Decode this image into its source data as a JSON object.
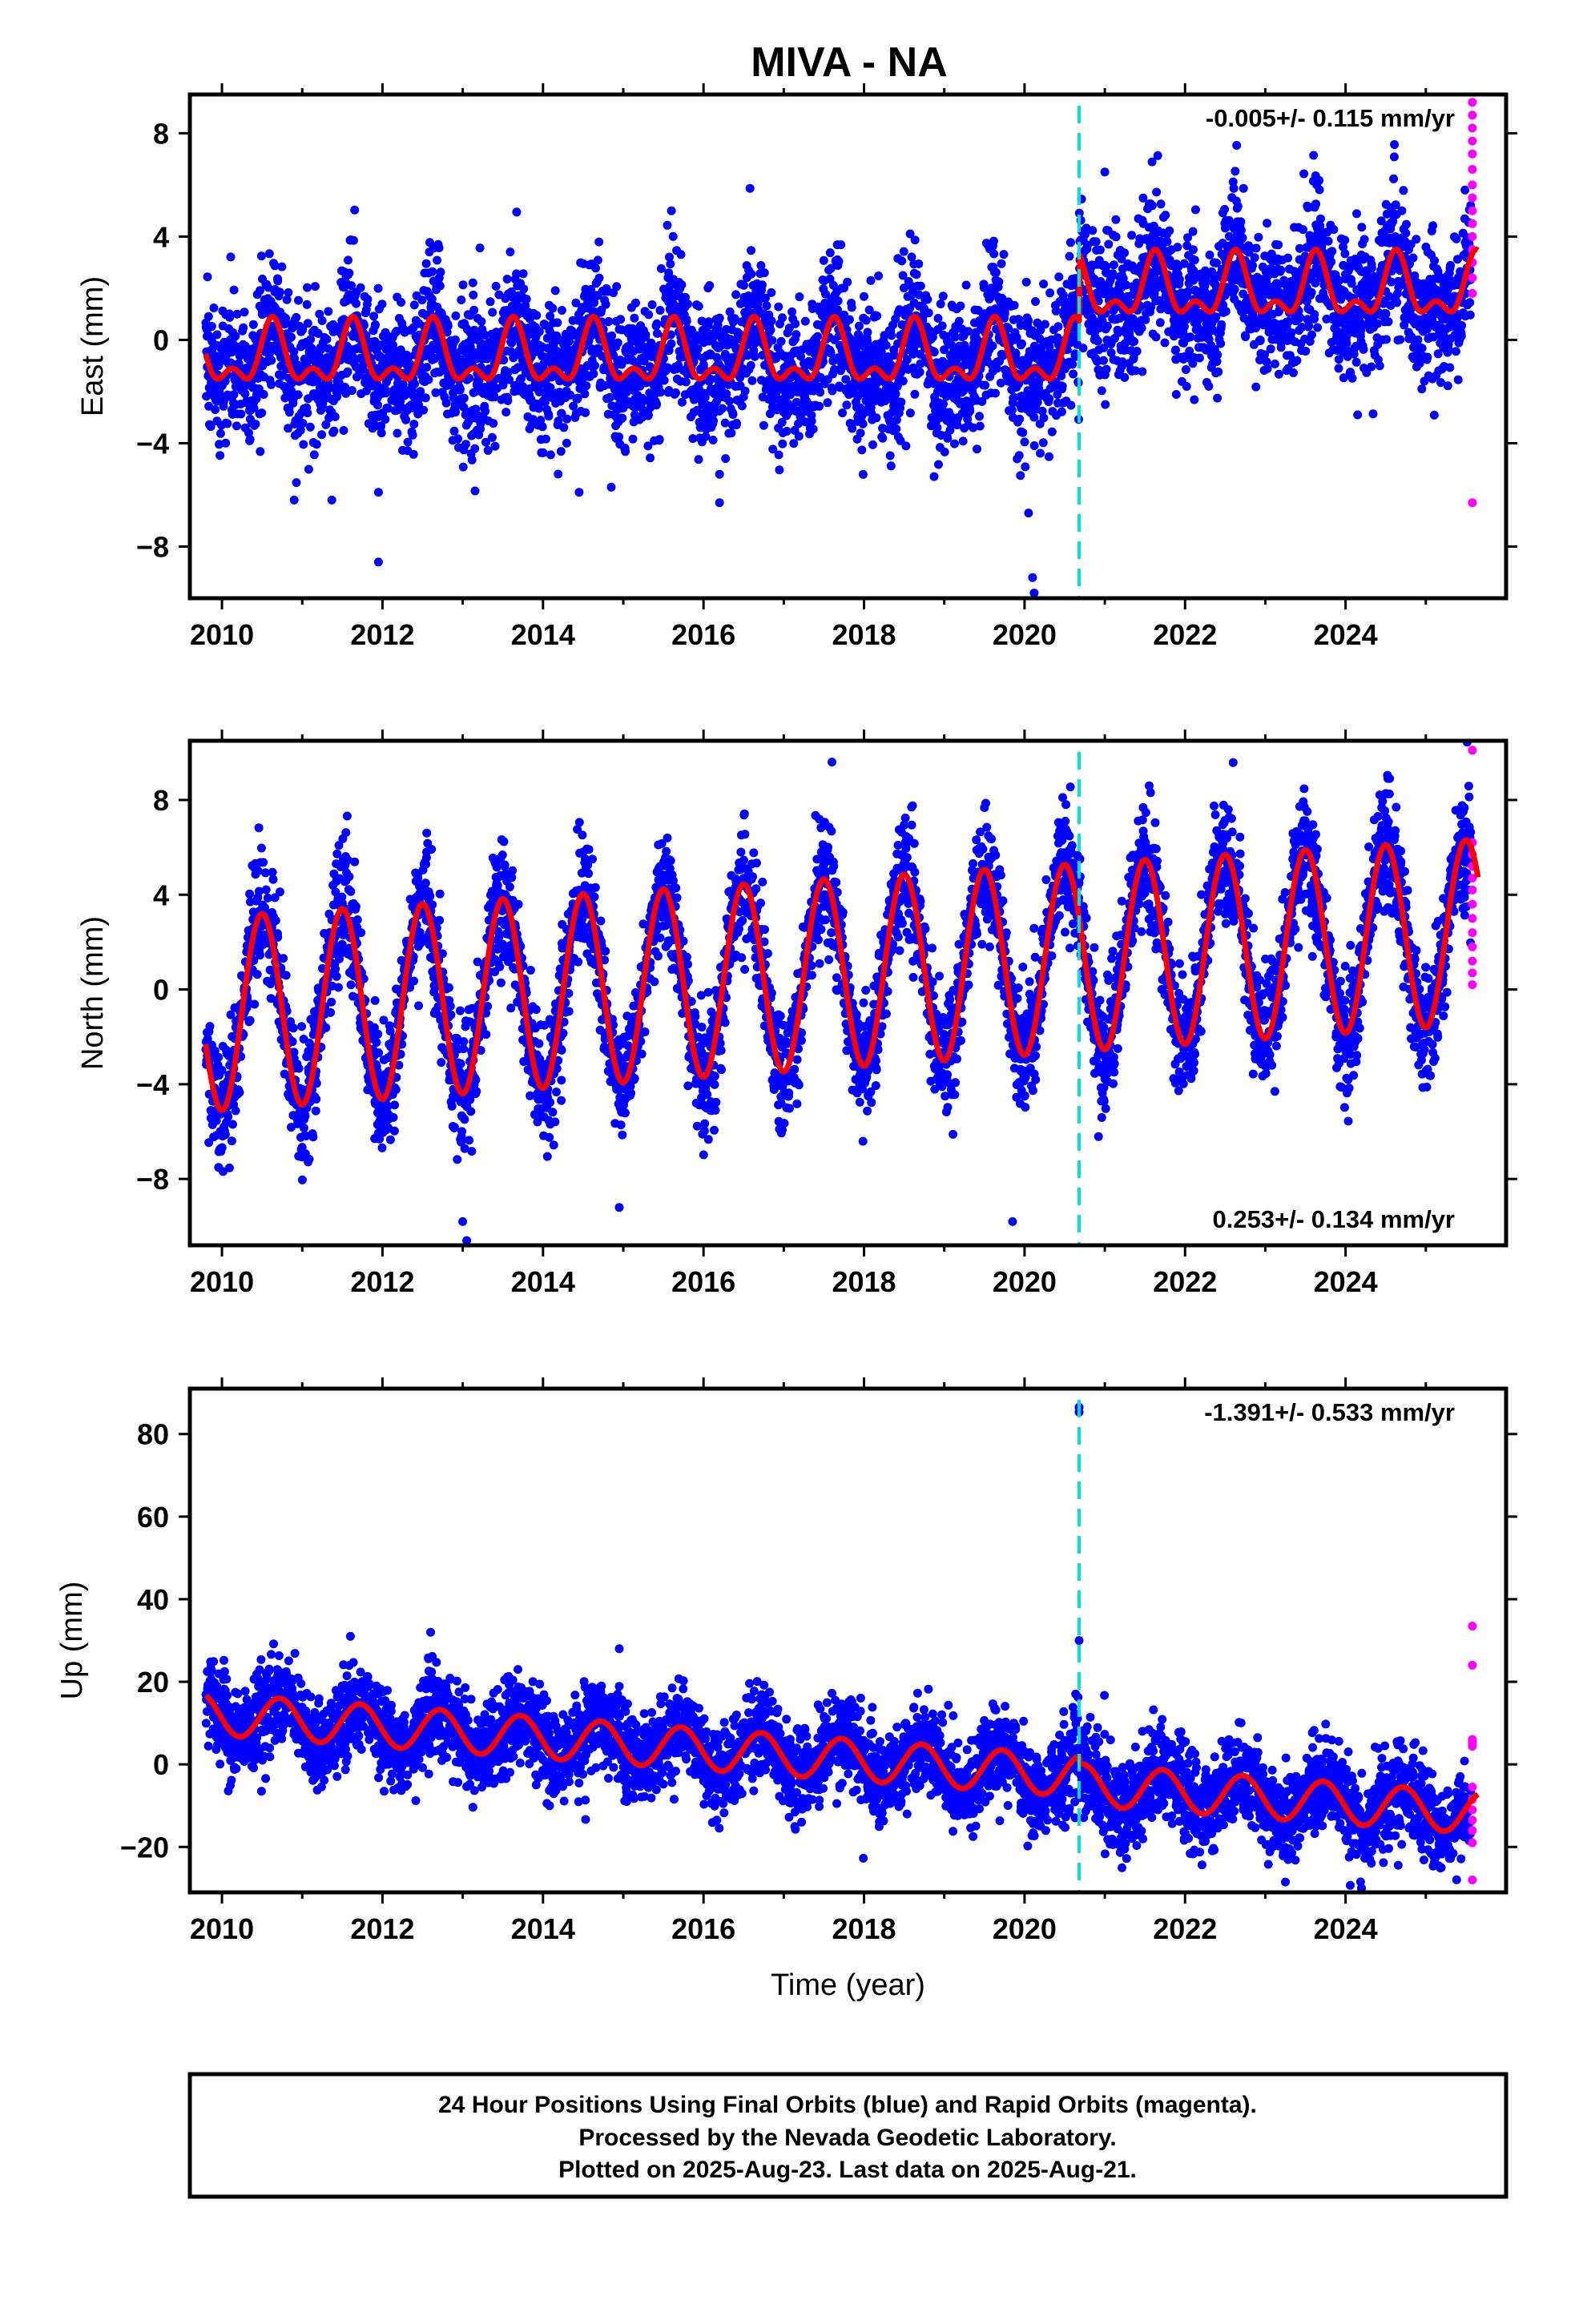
{
  "title": "MIVA - NA",
  "footer": {
    "lines": [
      "24 Hour Positions Using Final Orbits (blue) and Rapid Orbits (magenta).",
      "Processed by the Nevada Geodetic Laboratory.",
      "Plotted on 2025-Aug-23. Last data on 2025-Aug-21."
    ]
  },
  "colors": {
    "final_orbits": "#0000ff",
    "rapid_orbits": "#ff00ff",
    "model_fit": "#ff0000",
    "event_line": "#00e0e0"
  },
  "chart_data": [
    {
      "type": "scatter",
      "component": "east",
      "ylabel": "East (mm)",
      "xlabel": "",
      "xlim": [
        2009.6,
        2026.0
      ],
      "ylim": [
        -10.0,
        9.5
      ],
      "xticks": [
        2010,
        2012,
        2014,
        2016,
        2018,
        2020,
        2022,
        2024
      ],
      "yticks": [
        8,
        4,
        0,
        -4,
        -8
      ],
      "ytick_labels": [
        "8",
        "4",
        "0",
        "−4",
        "−8"
      ],
      "rate_label": "-0.005+/- 0.115 mm/yr",
      "rate_label_position": "top-right",
      "event_line_x": 2020.68,
      "fit": {
        "x_start": 2009.8,
        "x_end": 2025.65,
        "offset_before": -0.7,
        "offset_after": 1.9,
        "step_at": 2020.68,
        "annual_amplitude": 1.0,
        "annual_phase_peak": 0.63,
        "semiannual_amplitude": 0.6,
        "semiannual_phase_peak": 0.63
      },
      "scatter_sigma": 1.1,
      "outliers": [
        {
          "x": 2011.95,
          "y": -8.6
        },
        {
          "x": 2011.95,
          "y": -5.9
        },
        {
          "x": 2010.9,
          "y": -6.2
        },
        {
          "x": 2014.45,
          "y": -5.9
        },
        {
          "x": 2014.85,
          "y": -5.7
        },
        {
          "x": 2016.2,
          "y": -6.3
        },
        {
          "x": 2016.2,
          "y": -5.2
        },
        {
          "x": 2020.05,
          "y": -6.7
        },
        {
          "x": 2020.1,
          "y": -9.2
        },
        {
          "x": 2020.12,
          "y": -9.8
        },
        {
          "x": 2021.0,
          "y": 6.5
        },
        {
          "x": 2015.6,
          "y": 5.0
        },
        {
          "x": 2024.15,
          "y": -2.9
        },
        {
          "x": 2024.95,
          "y": -1.9
        }
      ],
      "rapid_points": [
        {
          "x": 2025.58,
          "y": 9.2
        },
        {
          "x": 2025.58,
          "y": 8.7
        },
        {
          "x": 2025.58,
          "y": 8.2
        },
        {
          "x": 2025.58,
          "y": 7.7
        },
        {
          "x": 2025.58,
          "y": 7.2
        },
        {
          "x": 2025.58,
          "y": 6.6
        },
        {
          "x": 2025.58,
          "y": 6.0
        },
        {
          "x": 2025.58,
          "y": 5.5
        },
        {
          "x": 2025.58,
          "y": 5.0
        },
        {
          "x": 2025.58,
          "y": 4.5
        },
        {
          "x": 2025.58,
          "y": 4.0
        },
        {
          "x": 2025.58,
          "y": 3.5
        },
        {
          "x": 2025.58,
          "y": 3.0
        },
        {
          "x": 2025.58,
          "y": 2.4
        },
        {
          "x": 2025.58,
          "y": 1.8
        },
        {
          "x": 2025.58,
          "y": -6.3
        }
      ]
    },
    {
      "type": "scatter",
      "component": "north",
      "ylabel": "North (mm)",
      "xlabel": "",
      "xlim": [
        2009.6,
        2026.0
      ],
      "ylim": [
        -10.8,
        10.5
      ],
      "xticks": [
        2010,
        2012,
        2014,
        2016,
        2018,
        2020,
        2022,
        2024
      ],
      "yticks": [
        8,
        4,
        0,
        -4,
        -8
      ],
      "ytick_labels": [
        "8",
        "4",
        "0",
        "−4",
        "−8"
      ],
      "rate_label": "0.253+/- 0.134 mm/yr",
      "rate_label_position": "bottom-right",
      "event_line_x": 2020.68,
      "fit": {
        "x_start": 2009.8,
        "x_end": 2025.65,
        "offset_at_2010": -1.0,
        "rate": 0.22,
        "annual_amplitude_start": 4.1,
        "annual_amplitude_end": 3.9,
        "annual_phase_peak": 0.5
      },
      "scatter_sigma": 1.0,
      "outliers": [
        {
          "x": 2013.05,
          "y": -10.6
        },
        {
          "x": 2013.0,
          "y": -9.8
        },
        {
          "x": 2014.95,
          "y": -9.2
        },
        {
          "x": 2019.85,
          "y": -9.8
        },
        {
          "x": 2017.6,
          "y": 9.6
        },
        {
          "x": 2010.45,
          "y": 5.0
        },
        {
          "x": 2012.55,
          "y": 5.8
        }
      ],
      "rapid_points": [
        {
          "x": 2025.58,
          "y": 10.1
        },
        {
          "x": 2025.58,
          "y": 6.2
        },
        {
          "x": 2025.58,
          "y": 5.7
        },
        {
          "x": 2025.58,
          "y": 5.2
        },
        {
          "x": 2025.58,
          "y": 4.7
        },
        {
          "x": 2025.58,
          "y": 4.2
        },
        {
          "x": 2025.58,
          "y": 3.6
        },
        {
          "x": 2025.58,
          "y": 3.0
        },
        {
          "x": 2025.58,
          "y": 2.4
        },
        {
          "x": 2025.58,
          "y": 1.8
        },
        {
          "x": 2025.58,
          "y": 1.2
        },
        {
          "x": 2025.58,
          "y": 0.7
        },
        {
          "x": 2025.58,
          "y": 0.2
        }
      ]
    },
    {
      "type": "scatter",
      "component": "up",
      "ylabel": "Up (mm)",
      "xlabel": "Time (year)",
      "xlim": [
        2009.6,
        2026.0
      ],
      "ylim": [
        -31.0,
        91.0
      ],
      "xticks": [
        2010,
        2012,
        2014,
        2016,
        2018,
        2020,
        2022,
        2024
      ],
      "yticks": [
        80,
        60,
        40,
        20,
        0,
        -20
      ],
      "ytick_labels": [
        "80",
        "60",
        "40",
        "20",
        "0",
        "−20"
      ],
      "rate_label": "-1.391+/- 0.533 mm/yr",
      "rate_label_position": "top-right",
      "event_line_x": 2020.68,
      "fit": {
        "x_start": 2009.8,
        "x_end": 2025.65,
        "offset_at_2010": 12.0,
        "rate": -1.391,
        "step_at": 2020.68,
        "step": -2.0,
        "annual_amplitude": 5.0,
        "annual_phase_peak": 0.72
      },
      "scatter_sigma": 4.5,
      "outliers": [
        {
          "x": 2020.68,
          "y": 86.5
        },
        {
          "x": 2020.68,
          "y": 85.3
        },
        {
          "x": 2020.68,
          "y": 30.0
        },
        {
          "x": 2014.95,
          "y": 28.0
        },
        {
          "x": 2011.6,
          "y": 31.0
        },
        {
          "x": 2012.6,
          "y": 32.0
        },
        {
          "x": 2023.25,
          "y": -28.5
        }
      ],
      "rapid_points": [
        {
          "x": 2025.58,
          "y": 33.5
        },
        {
          "x": 2025.58,
          "y": 24.0
        },
        {
          "x": 2025.58,
          "y": 6.0
        },
        {
          "x": 2025.58,
          "y": 5.2
        },
        {
          "x": 2025.58,
          "y": 4.4
        },
        {
          "x": 2025.58,
          "y": -5.5
        },
        {
          "x": 2025.58,
          "y": -8.5
        },
        {
          "x": 2025.58,
          "y": -11.0
        },
        {
          "x": 2025.58,
          "y": -13.5
        },
        {
          "x": 2025.58,
          "y": -16.0
        },
        {
          "x": 2025.58,
          "y": -19.0
        },
        {
          "x": 2025.58,
          "y": -28.0
        }
      ]
    }
  ]
}
